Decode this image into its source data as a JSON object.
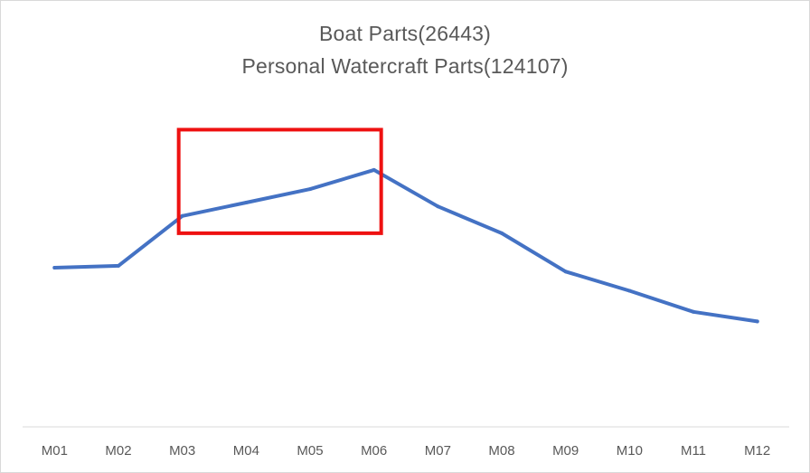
{
  "chart_data": {
    "type": "line",
    "title_lines": [
      "Boat Parts(26443)",
      "Personal Watercraft Parts(124107)"
    ],
    "categories": [
      "M01",
      "M02",
      "M03",
      "M04",
      "M05",
      "M06",
      "M07",
      "M08",
      "M09",
      "M10",
      "M11",
      "M12"
    ],
    "series": [
      {
        "values": [
          28,
          29,
          55,
          62,
          69,
          79,
          60,
          46,
          26,
          16,
          5,
          0
        ],
        "color": "#4472c4"
      }
    ],
    "ylim": [
      -55,
      120
    ],
    "y_axis_shown": false,
    "grid": false,
    "legend": "none",
    "annotations": [
      {
        "type": "highlight-box",
        "color": "#ee1111",
        "x_from": "M03",
        "x_to": "M06",
        "y_from": 46,
        "y_to": 100
      }
    ]
  }
}
